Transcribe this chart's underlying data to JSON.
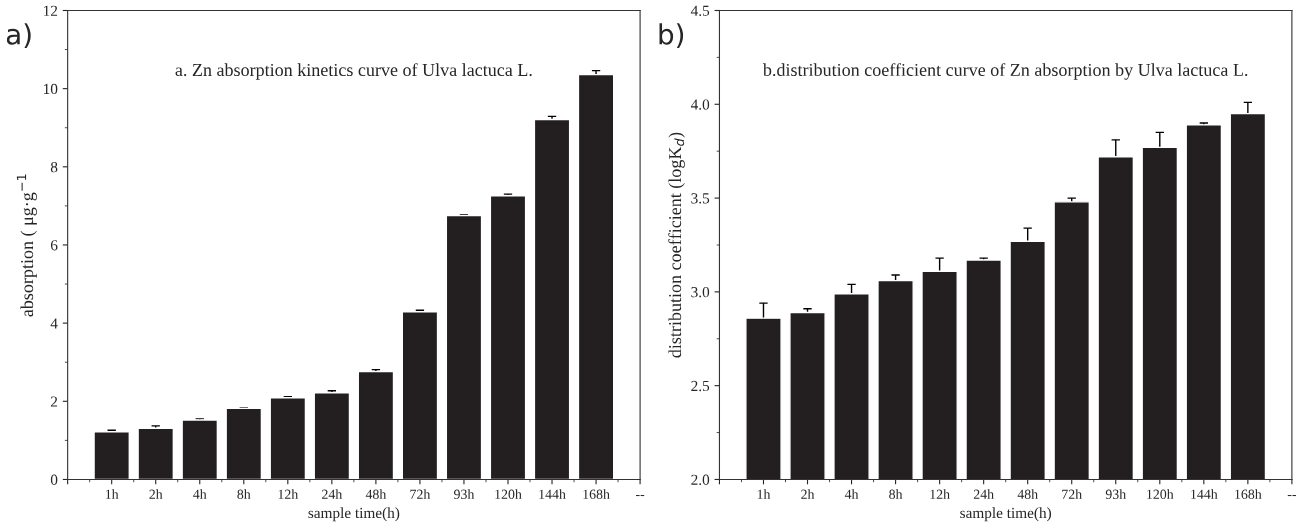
{
  "chart_data": [
    {
      "type": "bar",
      "title": "a. Zn absorption kinetics curve of Ulva lactuca L.",
      "xlabel": "sample time(h)",
      "ylabel": "absorption ( μg·g$^{−1}$",
      "annotations": [
        "a)"
      ],
      "categories": [
        null,
        "1h",
        "2h",
        "4h",
        "8h",
        "12h",
        "24h",
        "48h",
        "72h",
        "93h",
        "120h",
        "144h",
        "168h",
        "--"
      ],
      "series": [
        {
          "color": "#231f20",
          "values": [
            null,
            1.22,
            1.31,
            1.52,
            1.82,
            2.09,
            2.22,
            2.76,
            4.29,
            6.75,
            7.26,
            9.21,
            10.36,
            null
          ],
          "errors": [
            null,
            0.04,
            0.06,
            0.03,
            0.01,
            0.03,
            0.05,
            0.05,
            0.04,
            0.02,
            0.04,
            0.08,
            0.1,
            null
          ]
        }
      ],
      "ylim": [
        0,
        12
      ],
      "yticks": [
        0,
        2,
        4,
        6,
        8,
        10,
        12
      ],
      "grid": false,
      "legend": false
    },
    {
      "type": "bar",
      "title": "b.distribution coefficient curve of Zn absorption by Ulva lactuca L.",
      "xlabel": "sample time(h)",
      "ylabel": "distribution coefficient (logK$_{d}$)",
      "annotations": [
        "b)"
      ],
      "categories": [
        null,
        "1h",
        "2h",
        "4h",
        "8h",
        "12h",
        "24h",
        "48h",
        "72h",
        "93h",
        "120h",
        "144h",
        "168h",
        "--"
      ],
      "series": [
        {
          "color": "#231f20",
          "values": [
            null,
            2.86,
            2.89,
            2.99,
            3.06,
            3.11,
            3.17,
            3.27,
            3.48,
            3.72,
            3.77,
            3.89,
            3.95,
            null
          ],
          "errors": [
            null,
            0.08,
            0.02,
            0.05,
            0.03,
            0.07,
            0.01,
            0.07,
            0.02,
            0.09,
            0.08,
            0.01,
            0.06,
            null
          ]
        }
      ],
      "ylim": [
        2.0,
        4.5
      ],
      "yticks": [
        {
          "value": 2,
          "label": "2.0"
        },
        2.5,
        {
          "value": 3,
          "label": "3.0"
        },
        3.5,
        {
          "value": 4,
          "label": "4.0"
        },
        4.5
      ],
      "grid": false,
      "legend": false
    }
  ]
}
